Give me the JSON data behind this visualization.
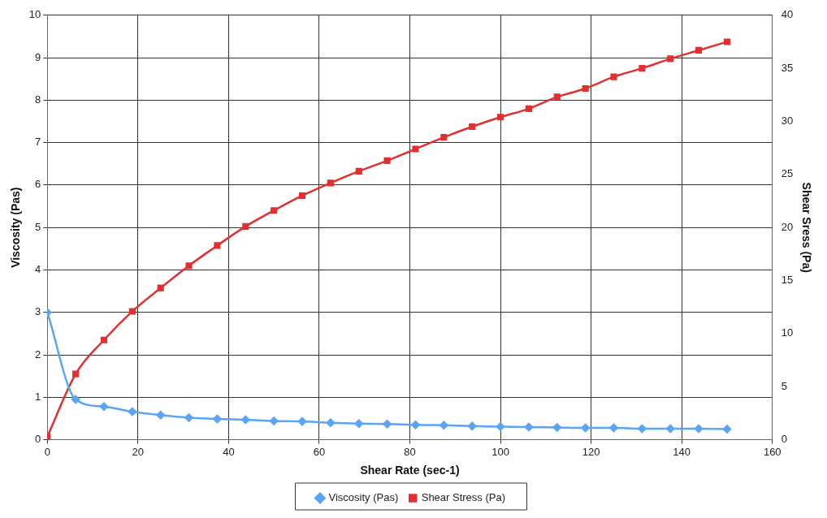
{
  "chart_data": {
    "type": "line",
    "xlabel": "Shear Rate (sec-1)",
    "ylabel": "Viscosity (Pas)",
    "y2label": "Shear Sress (Pa)",
    "x": [
      0,
      6.25,
      12.5,
      18.75,
      25,
      31.25,
      37.5,
      43.75,
      50,
      56.25,
      62.5,
      68.75,
      75,
      81.25,
      87.5,
      93.75,
      100,
      106.25,
      112.5,
      118.75,
      125,
      131.25,
      137.5,
      143.75,
      150
    ],
    "series": [
      {
        "name": "Viscosity (Pas)",
        "color": "#5aa5f5",
        "marker": "diamond",
        "values": [
          3.0,
          0.95,
          0.78,
          0.66,
          0.58,
          0.52,
          0.49,
          0.47,
          0.44,
          0.43,
          0.4,
          0.38,
          0.37,
          0.35,
          0.34,
          0.32,
          0.31,
          0.3,
          0.29,
          0.28,
          0.28,
          0.26,
          0.26,
          0.26,
          0.25
        ]
      },
      {
        "name": "Shear Stress (Pa)",
        "color": "#e03030",
        "marker": "square",
        "axis": "y2",
        "values": [
          0.3,
          6.2,
          9.4,
          12.1,
          14.3,
          16.4,
          18.3,
          20.1,
          21.6,
          23.0,
          24.2,
          25.3,
          26.3,
          27.4,
          28.5,
          29.5,
          30.4,
          31.2,
          32.3,
          33.1,
          34.2,
          35.0,
          35.9,
          36.7,
          37.5
        ]
      }
    ],
    "xlim": [
      0,
      160
    ],
    "xticks": [
      0,
      20,
      40,
      60,
      80,
      100,
      120,
      140,
      160
    ],
    "ylim": [
      0,
      10
    ],
    "yticks": [
      0,
      1,
      2,
      3,
      4,
      5,
      6,
      7,
      8,
      9,
      10
    ],
    "y2lim": [
      0,
      40
    ],
    "y2ticks": [
      0,
      5,
      10,
      15,
      20,
      25,
      30,
      35,
      40
    ],
    "grid": true,
    "legend": "bottom"
  }
}
